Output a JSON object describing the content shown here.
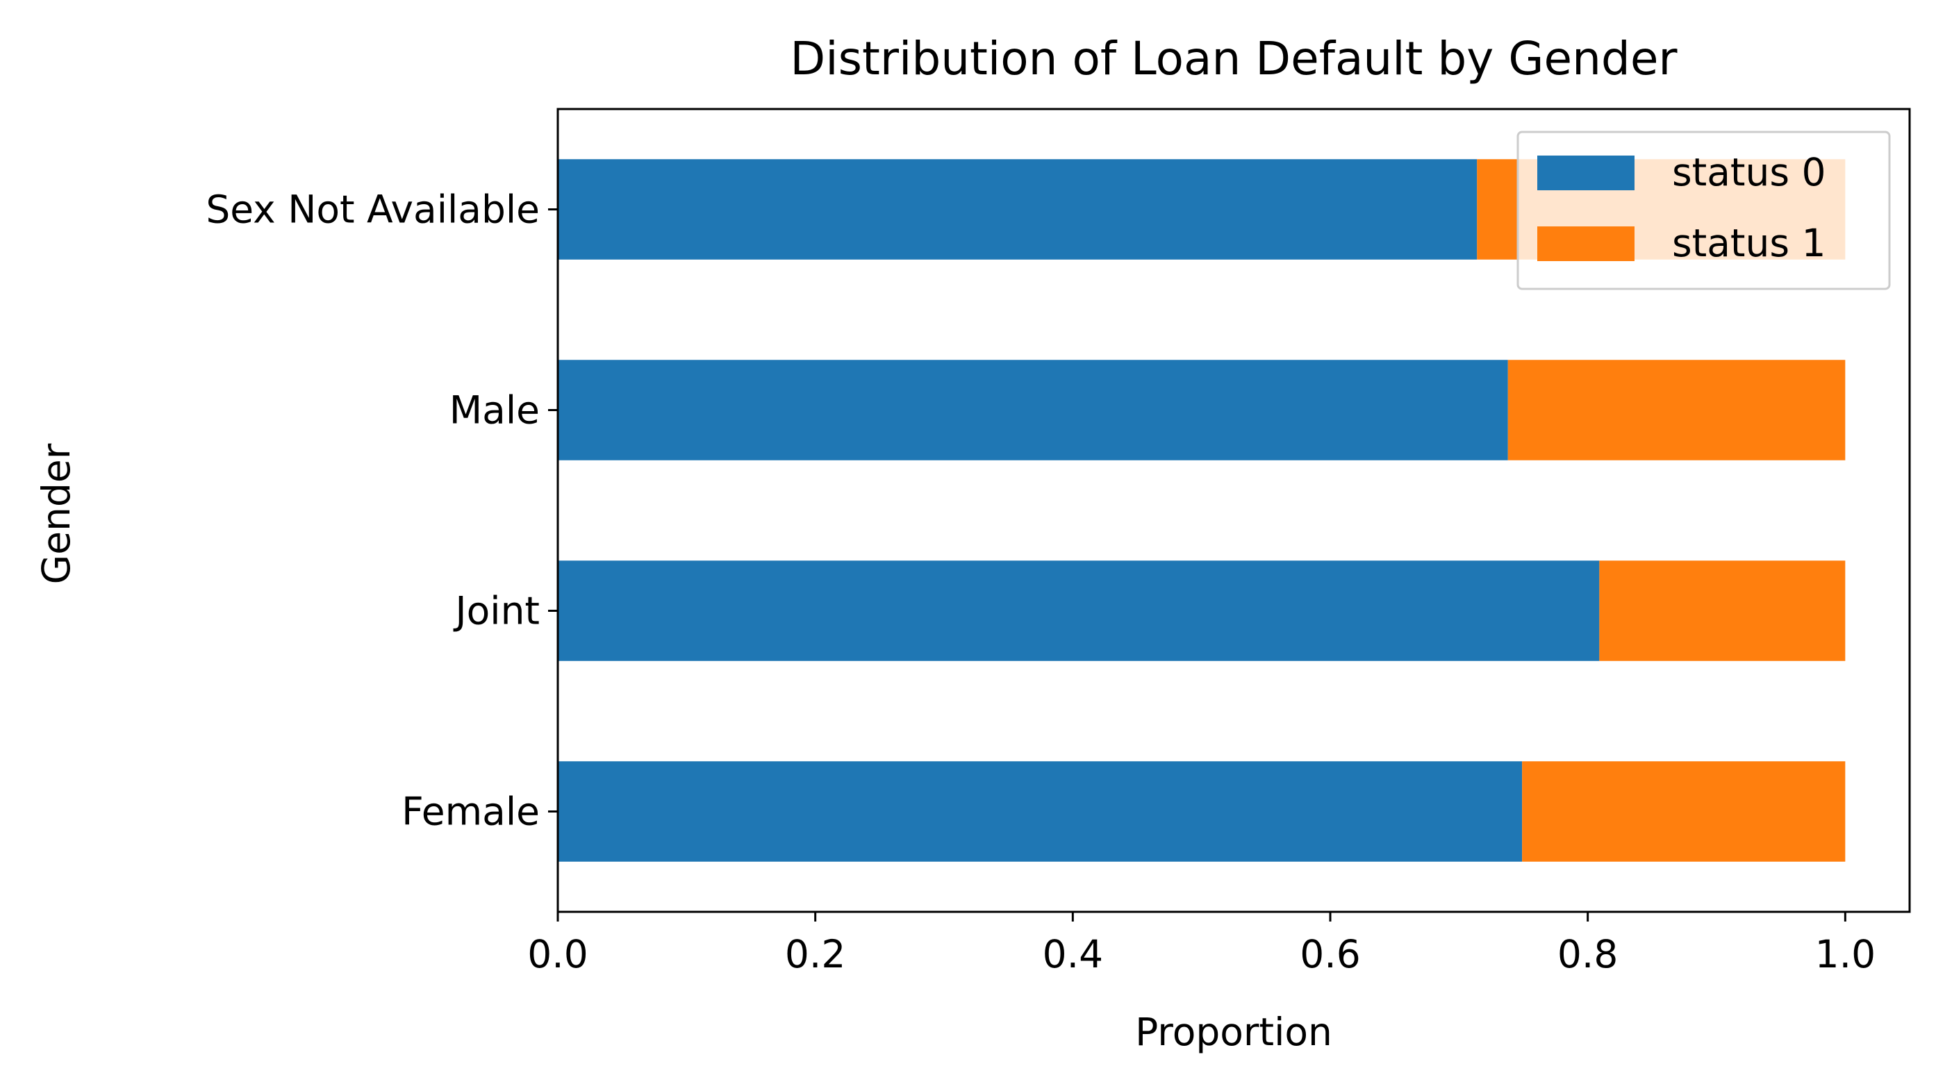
{
  "chart_data": {
    "type": "bar",
    "orientation": "horizontal",
    "stacked": true,
    "title": "Distribution of Loan Default by Gender",
    "xlabel": "Proportion",
    "ylabel": "Gender",
    "xlim": [
      0.0,
      1.05
    ],
    "xticks": [
      "0.0",
      "0.2",
      "0.4",
      "0.6",
      "0.8",
      "1.0"
    ],
    "categories": [
      "Female",
      "Joint",
      "Male",
      "Sex Not Available"
    ],
    "series": [
      {
        "name": "status 0",
        "color": "#1f77b4",
        "values": [
          0.749,
          0.809,
          0.738,
          0.714
        ]
      },
      {
        "name": "status 1",
        "color": "#ff7f0e",
        "values": [
          0.251,
          0.191,
          0.262,
          0.286
        ]
      }
    ],
    "legend": {
      "position": "top-right",
      "entries": [
        "status 0",
        "status 1"
      ]
    },
    "grid": false
  }
}
